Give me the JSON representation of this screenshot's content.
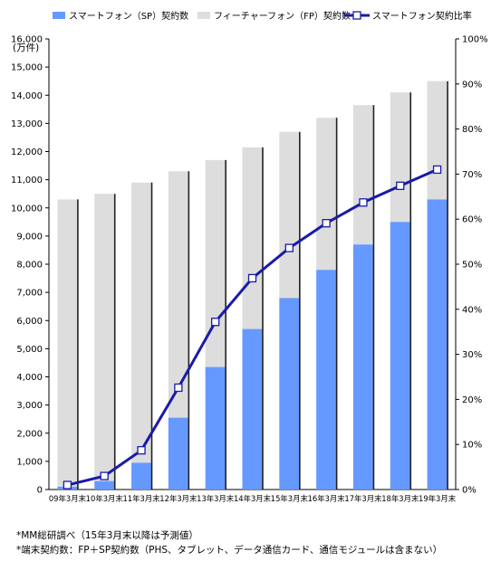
{
  "chart_data": {
    "type": "bar",
    "stacked": true,
    "unit_label": "(万件)",
    "categories": [
      "09年3月末",
      "10年3月末",
      "11年3月末",
      "12年3月末",
      "13年3月末",
      "14年3月末",
      "15年3月末",
      "16年3月末",
      "17年3月末",
      "18年3月末",
      "19年3月末"
    ],
    "series": [
      {
        "name": "スマートフォン（SP）契約数",
        "type": "bar",
        "axis": "left",
        "color": "#6699ff",
        "values": [
          100,
          300,
          950,
          2550,
          4350,
          5700,
          6800,
          7800,
          8700,
          9500,
          10300
        ]
      },
      {
        "name": "フィーチャーフォン（FP）契約数",
        "type": "bar",
        "axis": "left",
        "color": "#dddddd",
        "values": [
          10200,
          10200,
          9950,
          8750,
          7350,
          6450,
          5900,
          5400,
          4950,
          4600,
          4200
        ]
      },
      {
        "name": "スマートフォン契約比率",
        "type": "line",
        "axis": "right",
        "color": "#1a1aaa",
        "values": [
          1,
          3,
          8.7,
          22.6,
          37.2,
          46.9,
          53.6,
          59.1,
          63.7,
          67.4,
          71
        ]
      }
    ],
    "ylim_left": [
      0,
      16000
    ],
    "ytick_step_left": 1000,
    "y_ticks_left": [
      "0",
      "1,000",
      "2,000",
      "3,000",
      "4,000",
      "5,000",
      "6,000",
      "7,000",
      "8,000",
      "9,000",
      "10,000",
      "11,000",
      "12,000",
      "13,000",
      "14,000",
      "15,000",
      "16,000"
    ],
    "ylim_right": [
      0,
      100
    ],
    "ytick_step_right": 10,
    "y_ticks_right": [
      "0%",
      "10%",
      "20%",
      "30%",
      "40%",
      "50%",
      "60%",
      "70%",
      "80%",
      "90%",
      "100%"
    ],
    "legend_position": "top",
    "grid": false
  },
  "notes": [
    "*MM総研調べ（15年3月末以降は予測値）",
    "*端末契約数：FP＋SP契約数（PHS、タブレット、データ通信カード、通信モジュールは含まない）"
  ]
}
